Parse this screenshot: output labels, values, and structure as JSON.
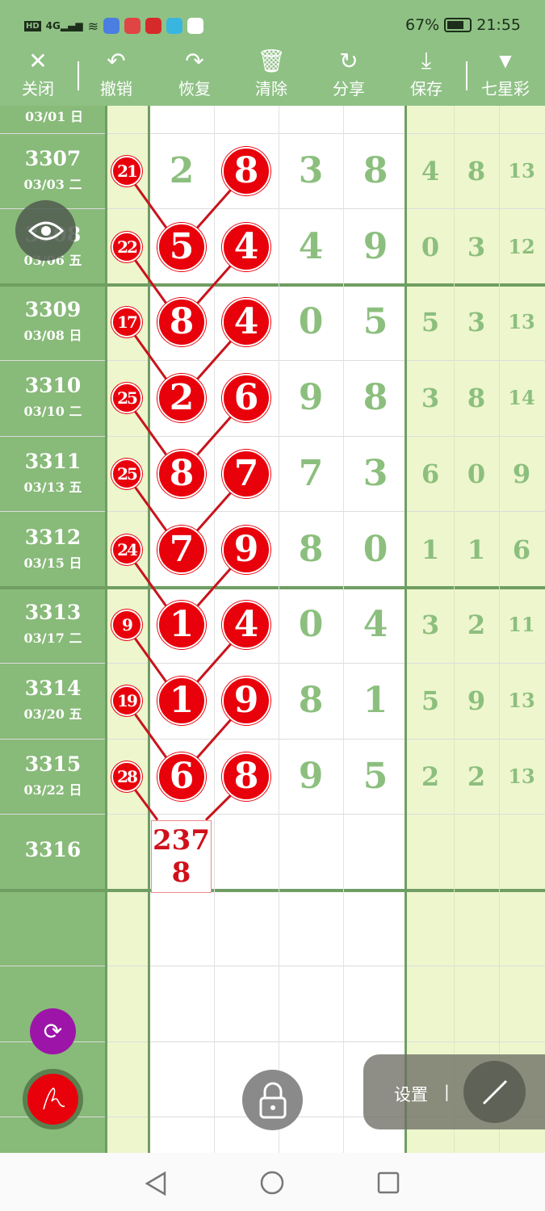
{
  "status_bar": {
    "left_icons": [
      "hd-icon",
      "4g-signal-icon",
      "wifi-icon",
      "app-icon-browser",
      "app-icon-video",
      "app-icon-video2",
      "app-icon-book",
      "app-icon-music"
    ],
    "battery": "67%",
    "time": "21:55"
  },
  "toolbar": {
    "items": [
      {
        "label": "关闭",
        "icon": "close-icon"
      },
      {
        "label": "撤销",
        "icon": "undo-icon"
      },
      {
        "label": "恢复",
        "icon": "redo-icon"
      },
      {
        "label": "清除",
        "icon": "trash-icon"
      },
      {
        "label": "分享",
        "icon": "share-icon"
      },
      {
        "label": "保存",
        "icon": "download-icon"
      },
      {
        "label": "七星彩",
        "icon": "dropdown-triangle-icon"
      }
    ]
  },
  "colors": {
    "header": "#8fc185",
    "left_column": "#88ba79",
    "digit_green": "#8cbf7e",
    "highlight_red": "#e8000b",
    "light_column": "#eef6cd"
  },
  "partial_row": {
    "date": "03/01 日"
  },
  "rows": [
    {
      "issue": "3307",
      "date": "03/03 二",
      "sum": "21",
      "digits": [
        "2",
        "8",
        "3",
        "8"
      ],
      "circled": [
        1
      ],
      "extra": [
        "4",
        "8",
        "13"
      ]
    },
    {
      "issue": "3308",
      "date": "03/06 五",
      "sum": "22",
      "digits": [
        "5",
        "4",
        "4",
        "9"
      ],
      "circled": [
        0,
        1
      ],
      "extra": [
        "0",
        "3",
        "12"
      ]
    },
    {
      "issue": "3309",
      "date": "03/08 日",
      "sum": "17",
      "digits": [
        "8",
        "4",
        "0",
        "5"
      ],
      "circled": [
        0,
        1
      ],
      "extra": [
        "5",
        "3",
        "13"
      ]
    },
    {
      "issue": "3310",
      "date": "03/10 二",
      "sum": "25",
      "digits": [
        "2",
        "6",
        "9",
        "8"
      ],
      "circled": [
        0,
        1
      ],
      "extra": [
        "3",
        "8",
        "14"
      ]
    },
    {
      "issue": "3311",
      "date": "03/13 五",
      "sum": "25",
      "digits": [
        "8",
        "7",
        "7",
        "3"
      ],
      "circled": [
        0,
        1
      ],
      "extra": [
        "6",
        "0",
        "9"
      ]
    },
    {
      "issue": "3312",
      "date": "03/15 日",
      "sum": "24",
      "digits": [
        "7",
        "9",
        "8",
        "0"
      ],
      "circled": [
        0,
        1
      ],
      "extra": [
        "1",
        "1",
        "6"
      ]
    },
    {
      "issue": "3313",
      "date": "03/17 二",
      "sum": "9",
      "digits": [
        "1",
        "4",
        "0",
        "4"
      ],
      "circled": [
        0,
        1
      ],
      "extra": [
        "3",
        "2",
        "11"
      ]
    },
    {
      "issue": "3314",
      "date": "03/20 五",
      "sum": "19",
      "digits": [
        "1",
        "9",
        "8",
        "1"
      ],
      "circled": [
        0,
        1
      ],
      "extra": [
        "5",
        "9",
        "13"
      ]
    },
    {
      "issue": "3315",
      "date": "03/22 日",
      "sum": "28",
      "digits": [
        "6",
        "8",
        "9",
        "5"
      ],
      "circled": [
        0,
        1
      ],
      "extra": [
        "2",
        "2",
        "13"
      ]
    }
  ],
  "next_row": {
    "issue": "3316",
    "prediction_line1": "237",
    "prediction_line2": "8"
  },
  "floating": {
    "settings_label": "设置",
    "settings_divider": "|"
  },
  "nav_bar": {
    "buttons": [
      "back-icon",
      "home-icon",
      "recents-icon"
    ]
  }
}
